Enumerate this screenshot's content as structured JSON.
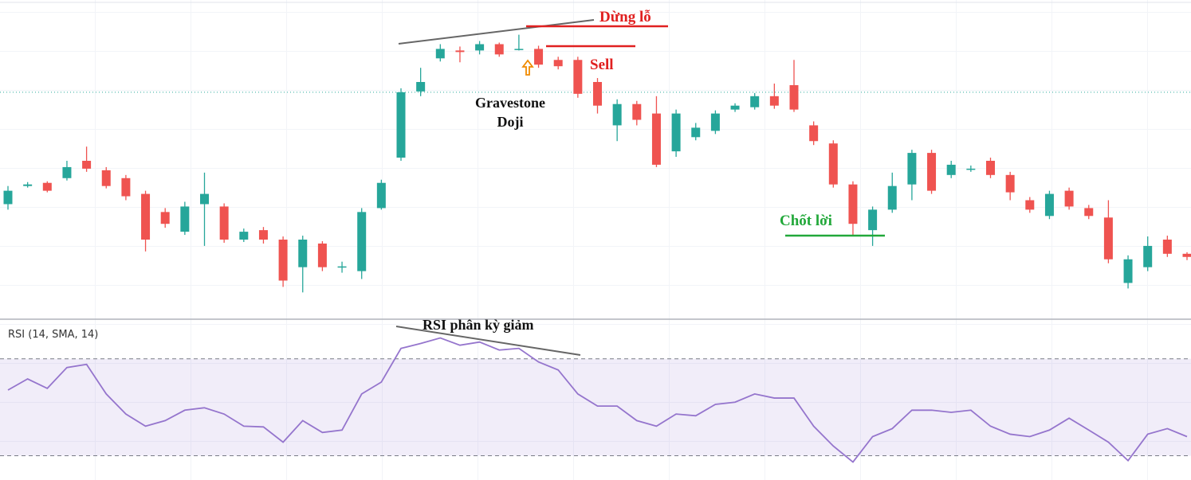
{
  "chart_data": [
    {
      "type": "candlestick",
      "ylim": [
        0,
        400
      ],
      "up_color": "#26a69a",
      "down_color": "#ef5350",
      "price_line": 287,
      "price_line_color": "#26a69a",
      "open": [
        145,
        168,
        172,
        178,
        200,
        188,
        178,
        158,
        135,
        110,
        145,
        142,
        100,
        112,
        100,
        65,
        95,
        65,
        60,
        140,
        204,
        288,
        330,
        340,
        340,
        348,
        342,
        342,
        328,
        328,
        300,
        245,
        272,
        260,
        212,
        230,
        238,
        265,
        268,
        282,
        296,
        245,
        222,
        170,
        112,
        138,
        170,
        210,
        182,
        190,
        200,
        182,
        150,
        130,
        162,
        140,
        128,
        45,
        65,
        100,
        82
      ],
      "high": [
        168,
        173,
        174,
        200,
        218,
        192,
        182,
        162,
        140,
        148,
        185,
        146,
        114,
        116,
        104,
        105,
        98,
        72,
        140,
        176,
        292,
        318,
        348,
        345,
        352,
        350,
        360,
        346,
        332,
        332,
        305,
        278,
        276,
        282,
        265,
        248,
        264,
        273,
        286,
        298,
        328,
        250,
        226,
        174,
        142,
        185,
        214,
        214,
        200,
        194,
        204,
        186,
        154,
        162,
        166,
        144,
        150,
        80,
        104,
        105,
        84
      ],
      "low": [
        138,
        166,
        160,
        175,
        186,
        165,
        150,
        85,
        115,
        106,
        92,
        96,
        97,
        95,
        40,
        33,
        60,
        58,
        50,
        138,
        200,
        282,
        326,
        325,
        335,
        332,
        340,
        318,
        316,
        280,
        260,
        225,
        245,
        192,
        205,
        226,
        234,
        262,
        265,
        266,
        262,
        220,
        166,
        105,
        92,
        134,
        150,
        158,
        178,
        186,
        178,
        150,
        134,
        126,
        138,
        126,
        70,
        38,
        60,
        78,
        74
      ],
      "close": [
        162,
        170,
        162,
        192,
        190,
        168,
        155,
        100,
        120,
        142,
        158,
        100,
        110,
        100,
        48,
        100,
        65,
        66,
        135,
        172,
        287,
        300,
        342,
        338,
        348,
        335,
        342,
        322,
        320,
        285,
        270,
        272,
        252,
        195,
        260,
        242,
        260,
        270,
        282,
        270,
        265,
        225,
        170,
        120,
        138,
        168,
        210,
        162,
        195,
        190,
        182,
        160,
        138,
        158,
        142,
        130,
        75,
        75,
        92,
        82,
        78
      ],
      "annotations": [
        "Dừng lỗ",
        "Sell",
        "Gravestone Doji",
        "Chốt lời"
      ]
    },
    {
      "type": "line",
      "legend": "RSI (14, SMA, 14)",
      "annotation": "RSI phân kỳ giảm",
      "ylim": [
        20,
        86
      ],
      "bands": [
        70,
        30
      ],
      "color": "#9575cd",
      "values": [
        57.1,
        61.7,
        57.8,
        66.4,
        67.7,
        55.5,
        47.2,
        42.2,
        44.5,
        48.8,
        49.8,
        47.2,
        42.2,
        41.9,
        35.6,
        44.5,
        39.6,
        40.6,
        55.5,
        60.4,
        74.3,
        76.3,
        78.6,
        75.6,
        76.9,
        73.6,
        74.3,
        68.7,
        65.4,
        55.5,
        50.5,
        50.5,
        44.5,
        42.2,
        47.2,
        46.5,
        51.2,
        52.1,
        55.5,
        53.8,
        53.8,
        42.2,
        34.0,
        27.4,
        37.9,
        41.2,
        48.8,
        48.8,
        47.9,
        48.8,
        42.2,
        38.9,
        37.9,
        40.6,
        45.5,
        40.6,
        35.6,
        28.0,
        38.9,
        41.2,
        37.9
      ]
    }
  ]
}
